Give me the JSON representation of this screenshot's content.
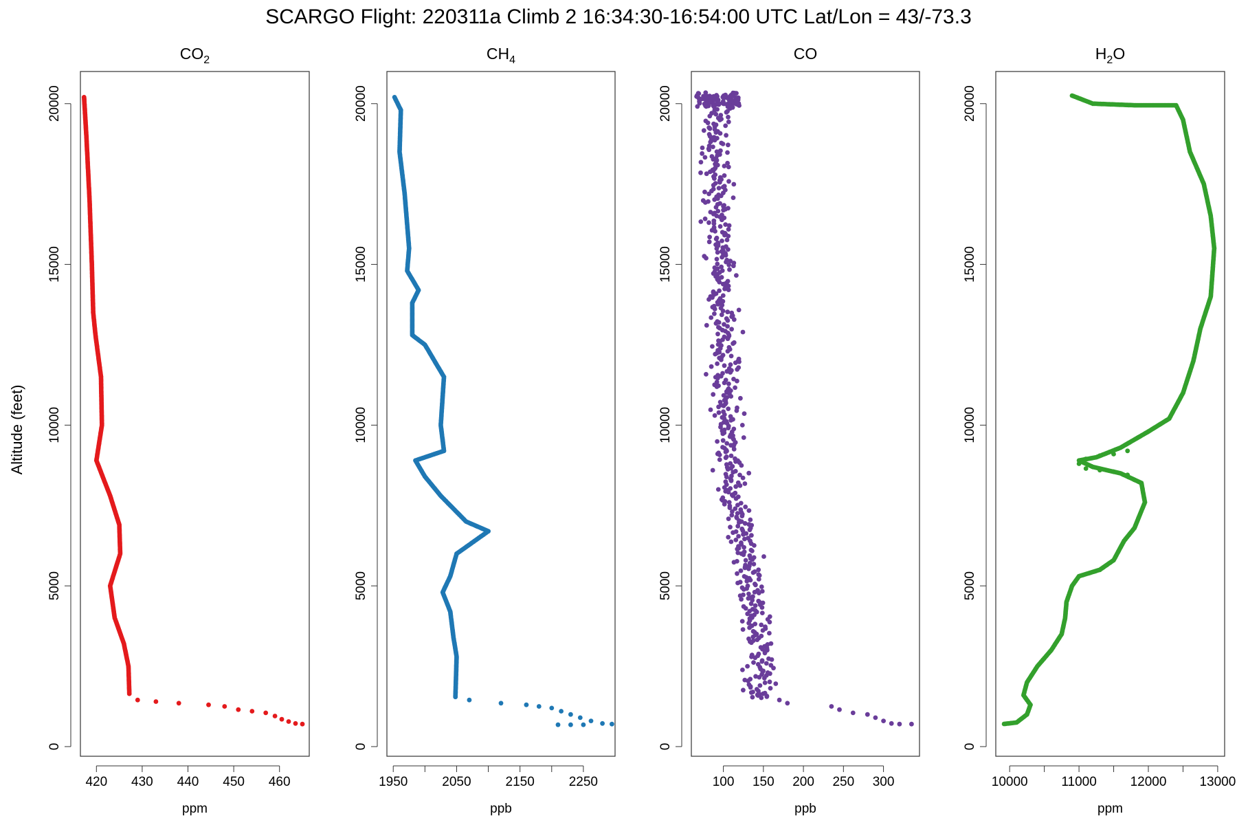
{
  "title": "SCARGO Flight: 220311a  Climb 2 16:34:30-16:54:00 UTC  Lat/Lon = 43/-73.3",
  "y_axis_label": "Altitude (feet)",
  "chart_data": [
    {
      "type": "scatter",
      "panel": "CO2",
      "title_base": "CO",
      "title_sub": "2",
      "title_tail": "",
      "xlabel": "ppm",
      "xlim": [
        416.5,
        466.5
      ],
      "xticks": [
        420,
        430,
        440,
        450,
        460
      ],
      "ylim": [
        -300,
        21000
      ],
      "yticks": [
        0,
        5000,
        10000,
        15000,
        20000
      ],
      "color": "#E41A1C",
      "profile": [
        [
          417.3,
          20200
        ],
        [
          417.8,
          19000
        ],
        [
          418.5,
          17000
        ],
        [
          419,
          15000
        ],
        [
          419.3,
          13500
        ],
        [
          419.8,
          12800
        ],
        [
          421,
          11500
        ],
        [
          421.2,
          10000
        ],
        [
          420,
          8900
        ],
        [
          423,
          7800
        ],
        [
          425,
          6900
        ],
        [
          425.2,
          6000
        ],
        [
          423,
          5000
        ],
        [
          424,
          4000
        ],
        [
          426,
          3200
        ],
        [
          427,
          2500
        ],
        [
          427.2,
          1600
        ]
      ],
      "sparse_points": [
        [
          429,
          1450
        ],
        [
          433,
          1400
        ],
        [
          438,
          1350
        ],
        [
          444.5,
          1300
        ],
        [
          448,
          1250
        ],
        [
          451,
          1150
        ],
        [
          454,
          1100
        ],
        [
          457,
          1050
        ],
        [
          459,
          950
        ],
        [
          460.5,
          850
        ],
        [
          462,
          780
        ],
        [
          463.5,
          720
        ],
        [
          465,
          700
        ]
      ]
    },
    {
      "type": "scatter",
      "panel": "CH4",
      "title_base": "CH",
      "title_sub": "4",
      "title_tail": "",
      "xlabel": "ppb",
      "xlim": [
        1940,
        2300
      ],
      "xticks": [
        1950,
        2050,
        2150,
        2250
      ],
      "xticks_minor": [
        2000,
        2100,
        2200
      ],
      "ylim": [
        -300,
        21000
      ],
      "yticks": [
        0,
        5000,
        10000,
        15000,
        20000
      ],
      "color": "#1F78B4",
      "profile": [
        [
          1952,
          20200
        ],
        [
          1962,
          19800
        ],
        [
          1960,
          18500
        ],
        [
          1968,
          17200
        ],
        [
          1975,
          15500
        ],
        [
          1972,
          14800
        ],
        [
          1990,
          14200
        ],
        [
          1980,
          13800
        ],
        [
          1980,
          12800
        ],
        [
          2000,
          12500
        ],
        [
          2030,
          11500
        ],
        [
          2025,
          10000
        ],
        [
          2030,
          9200
        ],
        [
          1985,
          8900
        ],
        [
          2000,
          8400
        ],
        [
          2025,
          7800
        ],
        [
          2065,
          7000
        ],
        [
          2100,
          6700
        ],
        [
          2050,
          6000
        ],
        [
          2040,
          5300
        ],
        [
          2028,
          4800
        ],
        [
          2040,
          4200
        ],
        [
          2045,
          3400
        ],
        [
          2050,
          2800
        ],
        [
          2048,
          1500
        ]
      ],
      "sparse_points": [
        [
          2070,
          1450
        ],
        [
          2120,
          1350
        ],
        [
          2160,
          1300
        ],
        [
          2180,
          1250
        ],
        [
          2200,
          1200
        ],
        [
          2215,
          1100
        ],
        [
          2230,
          1000
        ],
        [
          2245,
          900
        ],
        [
          2262,
          800
        ],
        [
          2280,
          720
        ],
        [
          2295,
          700
        ],
        [
          2250,
          680
        ],
        [
          2230,
          680
        ],
        [
          2210,
          680
        ]
      ]
    },
    {
      "type": "scatter",
      "panel": "CO",
      "title_base": "CO",
      "title_sub": "",
      "title_tail": "",
      "xlabel": "ppb",
      "xlim": [
        60,
        345
      ],
      "xticks": [
        100,
        150,
        200,
        250,
        300
      ],
      "ylim": [
        -300,
        21000
      ],
      "yticks": [
        0,
        5000,
        10000,
        15000,
        20000
      ],
      "color": "#6A3D9A",
      "profile": [
        [
          90,
          20000
        ],
        [
          92,
          18000
        ],
        [
          95,
          16000
        ],
        [
          96,
          14000
        ],
        [
          100,
          12000
        ],
        [
          105,
          10000
        ],
        [
          110,
          8000
        ],
        [
          120,
          7000
        ],
        [
          128,
          6000
        ],
        [
          130,
          5000
        ],
        [
          135,
          4500
        ],
        [
          145,
          3500
        ],
        [
          148,
          2500
        ],
        [
          140,
          1700
        ],
        [
          150,
          1500
        ]
      ],
      "noise": 14,
      "top_cluster": {
        "x_range": [
          65,
          120
        ],
        "y_range": [
          19900,
          20350
        ]
      },
      "sparse_points": [
        [
          170,
          1450
        ],
        [
          180,
          1350
        ],
        [
          235,
          1250
        ],
        [
          245,
          1150
        ],
        [
          262,
          1050
        ],
        [
          280,
          1000
        ],
        [
          290,
          900
        ],
        [
          300,
          800
        ],
        [
          310,
          720
        ],
        [
          320,
          700
        ],
        [
          335,
          700
        ]
      ]
    },
    {
      "type": "scatter",
      "panel": "H2O",
      "title_base": "H",
      "title_sub": "2",
      "title_tail": "O",
      "xlabel": "ppm",
      "xlim": [
        9800,
        13100
      ],
      "xticks": [
        10000,
        11000,
        12000,
        13000
      ],
      "xticks_minor": [
        10500,
        11500,
        12500
      ],
      "ylim": [
        -300,
        21000
      ],
      "yticks": [
        0,
        5000,
        10000,
        15000,
        20000
      ],
      "color": "#33A02C",
      "profile": [
        [
          10900,
          20250
        ],
        [
          11200,
          20000
        ],
        [
          11800,
          19950
        ],
        [
          12400,
          19950
        ],
        [
          12500,
          19500
        ],
        [
          12600,
          18500
        ],
        [
          12800,
          17500
        ],
        [
          12900,
          16500
        ],
        [
          12950,
          15500
        ],
        [
          12900,
          14000
        ],
        [
          12750,
          13000
        ],
        [
          12650,
          12000
        ],
        [
          12500,
          11000
        ],
        [
          12300,
          10200
        ],
        [
          12000,
          9800
        ],
        [
          11600,
          9300
        ],
        [
          11250,
          9000
        ],
        [
          11000,
          8900
        ],
        [
          11200,
          8700
        ],
        [
          11600,
          8500
        ],
        [
          11900,
          8200
        ],
        [
          11950,
          7600
        ],
        [
          11800,
          6800
        ],
        [
          11650,
          6400
        ],
        [
          11500,
          5800
        ],
        [
          11300,
          5500
        ],
        [
          11000,
          5300
        ],
        [
          10900,
          5000
        ],
        [
          10820,
          4500
        ],
        [
          10800,
          4000
        ],
        [
          10750,
          3500
        ],
        [
          10600,
          3000
        ],
        [
          10400,
          2500
        ],
        [
          10250,
          2000
        ],
        [
          10200,
          1600
        ],
        [
          10300,
          1300
        ],
        [
          10250,
          1000
        ],
        [
          10100,
          750
        ],
        [
          9900,
          700
        ]
      ],
      "sparse_points": [
        [
          11700,
          9200
        ],
        [
          11500,
          9100
        ],
        [
          11300,
          9050
        ],
        [
          11100,
          8950
        ],
        [
          11000,
          8800
        ],
        [
          11100,
          8650
        ],
        [
          11300,
          8600
        ],
        [
          11500,
          8550
        ],
        [
          11700,
          8450
        ]
      ]
    }
  ]
}
